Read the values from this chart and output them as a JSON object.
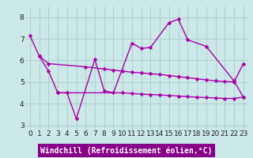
{
  "xlabel": "Windchill (Refroidissement éolien,°C)",
  "background_color": "#cce8e8",
  "line_color": "#aa00aa",
  "grid_color": "#aacccc",
  "xlim_min": -0.5,
  "xlim_max": 23.5,
  "ylim_min": 2.8,
  "ylim_max": 8.5,
  "yticks": [
    3,
    4,
    5,
    6,
    7,
    8
  ],
  "xticks": [
    0,
    1,
    2,
    3,
    4,
    5,
    6,
    7,
    8,
    9,
    10,
    11,
    12,
    13,
    14,
    15,
    16,
    17,
    18,
    19,
    20,
    21,
    22,
    23
  ],
  "line1_x": [
    0,
    1,
    2,
    3,
    4,
    5,
    7,
    8,
    9,
    11,
    12,
    13,
    15,
    16,
    17,
    19,
    22,
    23
  ],
  "line1_y": [
    7.15,
    6.2,
    5.5,
    4.5,
    4.5,
    3.3,
    6.05,
    4.6,
    4.5,
    6.8,
    6.55,
    6.6,
    7.75,
    7.9,
    6.95,
    6.65,
    5.05,
    4.3
  ],
  "line2_x": [
    1,
    2,
    6,
    8,
    9,
    10,
    11,
    12,
    13,
    14,
    15,
    16,
    17,
    18,
    19,
    20,
    21,
    22,
    23
  ],
  "line2_y": [
    6.2,
    5.85,
    5.7,
    5.6,
    5.55,
    5.5,
    5.45,
    5.42,
    5.38,
    5.35,
    5.3,
    5.25,
    5.2,
    5.15,
    5.1,
    5.05,
    5.02,
    5.0,
    5.85
  ],
  "line3_x": [
    3,
    10,
    11,
    12,
    13,
    14,
    15,
    16,
    17,
    18,
    19,
    20,
    21,
    22,
    23
  ],
  "line3_y": [
    4.5,
    4.5,
    4.47,
    4.44,
    4.42,
    4.4,
    4.38,
    4.35,
    4.32,
    4.3,
    4.28,
    4.26,
    4.24,
    4.24,
    4.3
  ],
  "lw": 1.0,
  "ms": 2.5,
  "font_size_ticks": 6.5,
  "font_size_xlabel": 7.0,
  "xlabel_bg": "#880088",
  "xlabel_fg": "#ffffff"
}
